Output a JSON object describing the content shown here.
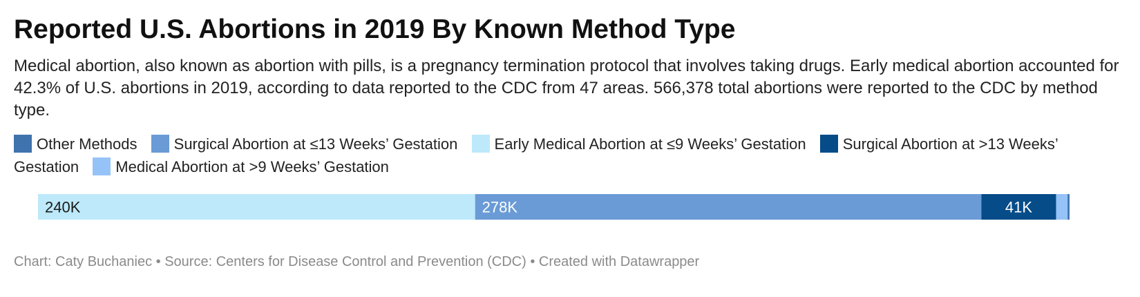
{
  "header": {
    "title": "Reported U.S. Abortions in 2019 By Known Method Type",
    "subtitle": "Medical abortion, also known as abortion with pills, is a pregnancy termination protocol that involves taking drugs. Early medical abortion accounted for 42.3% of U.S. abortions in 2019, according to data reported to the CDC from 47 areas. 566,378 total abortions were reported to the CDC by method type."
  },
  "legend": {
    "items": [
      {
        "label": "Other Methods",
        "color": "#3f73ae"
      },
      {
        "label": "Surgical Abortion at ≤13 Weeks’ Gestation",
        "color": "#6a9bd6"
      },
      {
        "label": "Early Medical Abortion at ≤9 Weeks’ Gestation",
        "color": "#bde9fb"
      },
      {
        "label": "Surgical Abortion at >13 Weeks’ Gestation",
        "color": "#054c88"
      },
      {
        "label": "Medical Abortion at >9 Weeks’ Gestation",
        "color": "#96c3f7"
      }
    ]
  },
  "chart_data": {
    "type": "bar",
    "orientation": "horizontal-stacked",
    "total": 566378,
    "segments": [
      {
        "name": "Early Medical Abortion at ≤9 Weeks’ Gestation",
        "value": 240000,
        "label": "240K",
        "color": "#bde9fb",
        "label_color": "#1a1a1a",
        "label_align": "left"
      },
      {
        "name": "Surgical Abortion at ≤13 Weeks’ Gestation",
        "value": 278000,
        "label": "278K",
        "color": "#6a9bd6",
        "label_color": "#ffffff",
        "label_align": "left"
      },
      {
        "name": "Surgical Abortion at >13 Weeks’ Gestation",
        "value": 41000,
        "label": "41K",
        "color": "#054c88",
        "label_color": "#ffffff",
        "label_align": "center"
      },
      {
        "name": "Medical Abortion at >9 Weeks’ Gestation",
        "value": 6300,
        "label": "",
        "color": "#96c3f7",
        "label_color": "#1a1a1a",
        "label_align": "center"
      },
      {
        "name": "Other Methods",
        "value": 1078,
        "label": "",
        "color": "#3f73ae",
        "label_color": "#ffffff",
        "label_align": "center"
      }
    ]
  },
  "footer": {
    "text": "Chart: Caty Buchaniec • Source: Centers for Disease Control and Prevention (CDC) • Created with Datawrapper"
  }
}
